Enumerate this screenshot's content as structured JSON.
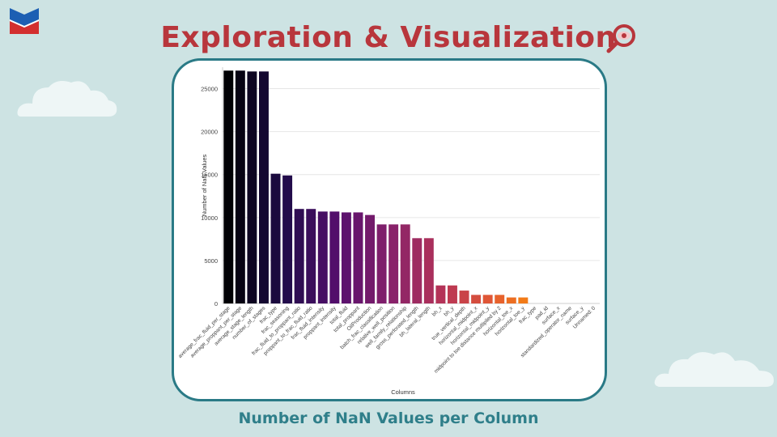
{
  "slide": {
    "title": "Exploration & Visualization",
    "caption": "Number of NaN Values per Column",
    "title_color": "#b8363c",
    "caption_color": "#2f7f8a",
    "frame_border_color": "#2a7a86",
    "background_color": "#cde3e3"
  },
  "icons": {
    "logo": "chevron-logo",
    "title_icon": "magnifier-eye-icon"
  },
  "chart_data": {
    "type": "bar",
    "title": "",
    "xlabel": "Columns",
    "ylabel": "Number of NaN Values",
    "ylim": [
      0,
      27500
    ],
    "yticks": [
      0,
      5000,
      10000,
      15000,
      20000,
      25000
    ],
    "grid": true,
    "colormap": "inferno",
    "categories": [
      "average_frac_fluid_per_stage",
      "average_proppant_per_stage",
      "average_stage_length",
      "number_of_stages",
      "frac_type",
      "frac_seasoning",
      "frac_fluid_to_proppant_ratio",
      "proppant_to_frac_fluid_ratio",
      "frac_fluid_intensity",
      "proppant_intensity",
      "total_fluid",
      "total_proppant",
      "OilProduction",
      "batch_frac_classification",
      "relative_well_position",
      "well_family_relationship",
      "gross_perforated_length",
      "bh_lateral_length",
      "bh_x",
      "bh_y",
      "true_vertical_depth",
      "horizontal_midpoint_x",
      "horizontal_midpoint_y",
      "midpoint to toe distance multiplied by 2",
      "horizontal_toe_x",
      "horizontal_toe_y",
      "frac_type",
      "pad_id",
      "surface_x",
      "standardized_operator_name",
      "surface_y",
      "Unnamed: 0"
    ],
    "values": [
      27100,
      27100,
      27000,
      27000,
      15100,
      14900,
      11000,
      11000,
      10700,
      10700,
      10600,
      10600,
      10300,
      9200,
      9200,
      9200,
      7600,
      7600,
      2100,
      2100,
      1500,
      1000,
      1000,
      1000,
      700,
      700,
      0,
      0,
      0,
      0,
      0,
      0
    ]
  }
}
